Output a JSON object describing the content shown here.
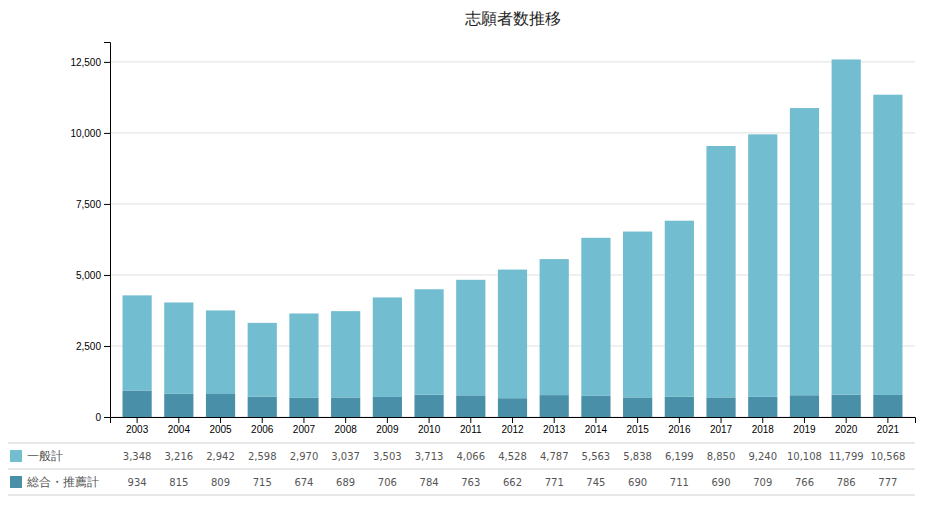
{
  "chart_data": {
    "type": "bar",
    "title": "志願者数推移",
    "stacked": true,
    "grid": true,
    "data_labels": true,
    "categories": [
      "2003",
      "2004",
      "2005",
      "2006",
      "2007",
      "2008",
      "2009",
      "2010",
      "2011",
      "2012",
      "2013",
      "2014",
      "2015",
      "2016",
      "2017",
      "2018",
      "2019",
      "2020",
      "2021"
    ],
    "series": [
      {
        "name": "総合・推薦計",
        "color": "#4a8fa8",
        "values": [
          934,
          815,
          809,
          715,
          674,
          689,
          706,
          784,
          763,
          662,
          771,
          745,
          690,
          711,
          690,
          709,
          766,
          786,
          777
        ]
      },
      {
        "name": "一般計",
        "color": "#72bdd0",
        "values": [
          3348,
          3216,
          2942,
          2598,
          2970,
          3037,
          3503,
          3713,
          4066,
          4528,
          4787,
          5563,
          5838,
          6199,
          8850,
          9240,
          10108,
          11799,
          10568
        ],
        "value_labels": [
          "3,348",
          "3,216",
          "2,942",
          "2,598",
          "2,970",
          "3,037",
          "3,503",
          "3,713",
          "4,066",
          "4,528",
          "4,787",
          "5,563",
          "5,838",
          "6,199",
          "8,850",
          "9,240",
          "10,108",
          "11,799",
          "10,568"
        ]
      }
    ],
    "ylim": [
      0,
      13200
    ],
    "yticks": [
      0,
      {
        "value": 2500,
        "label": "2,500"
      },
      {
        "value": 5000,
        "label": "5,000"
      },
      {
        "value": 7500,
        "label": "7,500"
      },
      {
        "value": 10000,
        "label": "10,000"
      },
      {
        "value": 12500,
        "label": "12,500"
      }
    ]
  }
}
